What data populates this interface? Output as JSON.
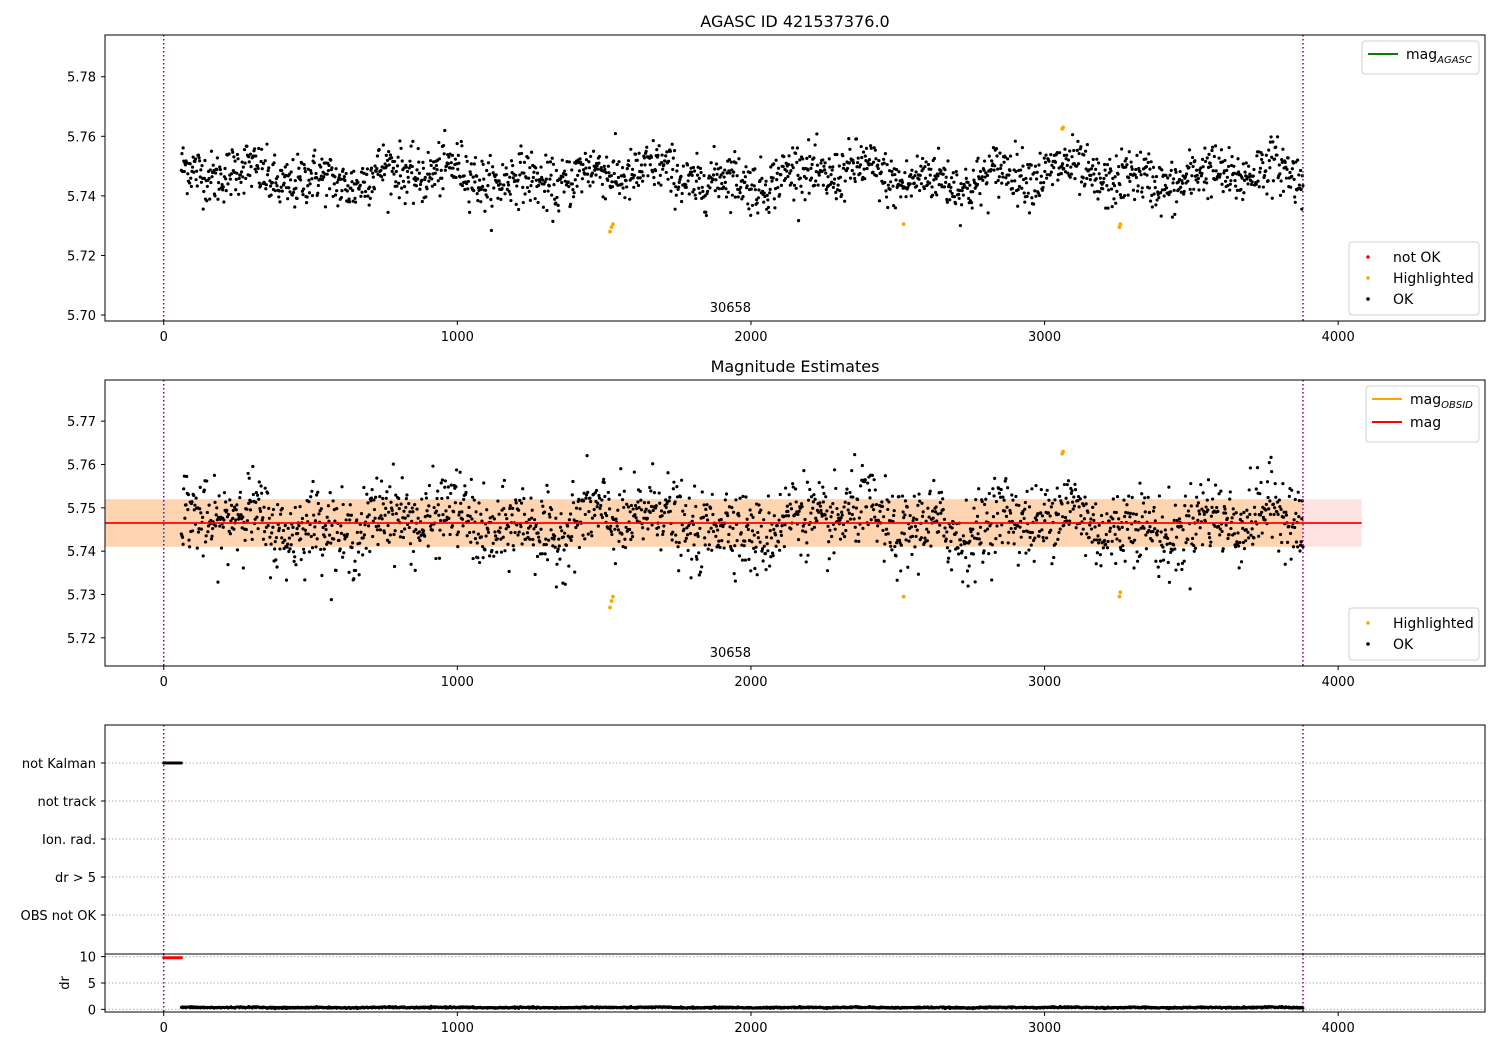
{
  "chart_data": [
    {
      "type": "scatter",
      "title": "AGASC ID 421537376.0",
      "xlim": [
        -200,
        4500
      ],
      "ylim": [
        5.698,
        5.794
      ],
      "xticks": [
        0,
        1000,
        2000,
        3000,
        4000
      ],
      "yticks": [
        5.7,
        5.72,
        5.74,
        5.76,
        5.78
      ],
      "ytick_format": 2,
      "grid": false,
      "vlines": [
        0,
        3880
      ],
      "obsid_label": {
        "x": 1930,
        "text": "30658"
      },
      "line_legend": {
        "position": "top-right",
        "entries": [
          {
            "label": "mag",
            "sub": "AGASC",
            "color": "#008000"
          }
        ]
      },
      "point_legend": {
        "position": "bottom-right",
        "entries": [
          {
            "label": "not OK",
            "color": "#ff0000"
          },
          {
            "label": "Highlighted",
            "color": "#ffa500"
          },
          {
            "label": "OK",
            "color": "#000000"
          }
        ]
      },
      "series": [
        {
          "name": "OK",
          "color": "#000000",
          "x_range": [
            60,
            3880
          ],
          "count": 1900,
          "mean": 5.7465,
          "sd": 0.0055
        },
        {
          "name": "Highlighted",
          "color": "#ffa500",
          "points": [
            [
              1520,
              5.728
            ],
            [
              1525,
              5.7295
            ],
            [
              1530,
              5.7305
            ],
            [
              2520,
              5.7305
            ],
            [
              3060,
              5.7625
            ],
            [
              3063,
              5.763
            ],
            [
              3255,
              5.7295
            ],
            [
              3258,
              5.7305
            ]
          ]
        },
        {
          "name": "not OK",
          "color": "#ff0000",
          "points": []
        }
      ],
      "lines": []
    },
    {
      "type": "scatter",
      "title": "Magnitude Estimates",
      "xlim": [
        -200,
        4500
      ],
      "ylim": [
        5.7135,
        5.7795
      ],
      "xticks": [
        0,
        1000,
        2000,
        3000,
        4000
      ],
      "yticks": [
        5.72,
        5.73,
        5.74,
        5.75,
        5.76,
        5.77
      ],
      "ytick_format": 2,
      "grid": false,
      "vlines": [
        0,
        3880
      ],
      "obsid_label": {
        "x": 1930,
        "text": "30658"
      },
      "bands": [
        {
          "x": [
            -200,
            4080
          ],
          "y": [
            5.741,
            5.752
          ],
          "color": "#ff0000",
          "opacity": 0.11
        },
        {
          "x": [
            -200,
            3880
          ],
          "y": [
            5.741,
            5.752
          ],
          "color": "#ffa500",
          "opacity": 0.22
        }
      ],
      "lines": [
        {
          "name": "mag",
          "x": [
            -200,
            4080
          ],
          "y": 5.7465,
          "color": "#ff0000"
        }
      ],
      "line_legend": {
        "position": "top-right",
        "entries": [
          {
            "label": "mag",
            "sub": "OBSID",
            "color": "#ffa500"
          },
          {
            "label": "mag",
            "sub": "",
            "color": "#ff0000"
          }
        ]
      },
      "point_legend": {
        "position": "bottom-right",
        "entries": [
          {
            "label": "Highlighted",
            "color": "#ffa500"
          },
          {
            "label": "OK",
            "color": "#000000"
          }
        ]
      },
      "series": [
        {
          "name": "OK",
          "color": "#000000",
          "x_range": [
            60,
            3880
          ],
          "count": 1900,
          "mean": 5.7465,
          "sd": 0.0055
        },
        {
          "name": "Highlighted",
          "color": "#ffa500",
          "points": [
            [
              1520,
              5.727
            ],
            [
              1525,
              5.7285
            ],
            [
              1530,
              5.7295
            ],
            [
              2520,
              5.7295
            ],
            [
              3060,
              5.7625
            ],
            [
              3063,
              5.763
            ],
            [
              3255,
              5.7295
            ],
            [
              3258,
              5.7305
            ]
          ]
        }
      ]
    },
    {
      "type": "scatter",
      "title": "",
      "xlim": [
        -200,
        4500
      ],
      "categories": [
        "not Kalman",
        "not track",
        "Ion. rad.",
        "dr > 5",
        "OBS not OK"
      ],
      "grid": true,
      "vlines": [
        0,
        3880
      ],
      "series": [
        {
          "name": "not Kalman",
          "color": "#000000",
          "x_range": [
            0,
            60
          ],
          "count": 16
        }
      ]
    },
    {
      "type": "scatter",
      "title": "",
      "xlim": [
        -200,
        4500
      ],
      "ylim": [
        -0.5,
        10.5
      ],
      "xticks": [
        0,
        1000,
        2000,
        3000,
        4000
      ],
      "yticks": [
        0,
        5,
        10
      ],
      "ylabel": "dr",
      "grid": true,
      "vlines": [
        0,
        3880
      ],
      "series": [
        {
          "name": "dr > 5",
          "color": "#ff0000",
          "x_range": [
            0,
            60
          ],
          "count": 16,
          "y": 9.8
        },
        {
          "name": "dr",
          "color": "#000000",
          "x_range": [
            60,
            3880
          ],
          "count": 1900,
          "mean": 0.35,
          "sd": 0.08
        }
      ]
    }
  ]
}
